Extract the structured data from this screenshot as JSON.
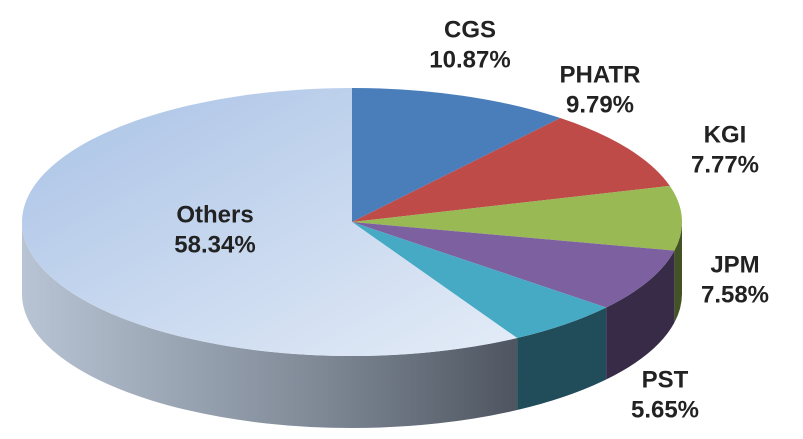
{
  "chart_data": {
    "type": "pie",
    "categories": [
      "CGS",
      "PHATR",
      "KGI",
      "JPM",
      "PST",
      "Others"
    ],
    "values": [
      10.87,
      9.79,
      7.77,
      7.58,
      5.65,
      58.34
    ],
    "value_labels": [
      "10.87%",
      "9.79%",
      "7.77%",
      "7.58%",
      "5.65%",
      "58.34%"
    ],
    "colors": [
      "#4a7ebb",
      "#be4b48",
      "#98b954",
      "#7d60a0",
      "#46aac5",
      "#c6d7ee"
    ]
  }
}
